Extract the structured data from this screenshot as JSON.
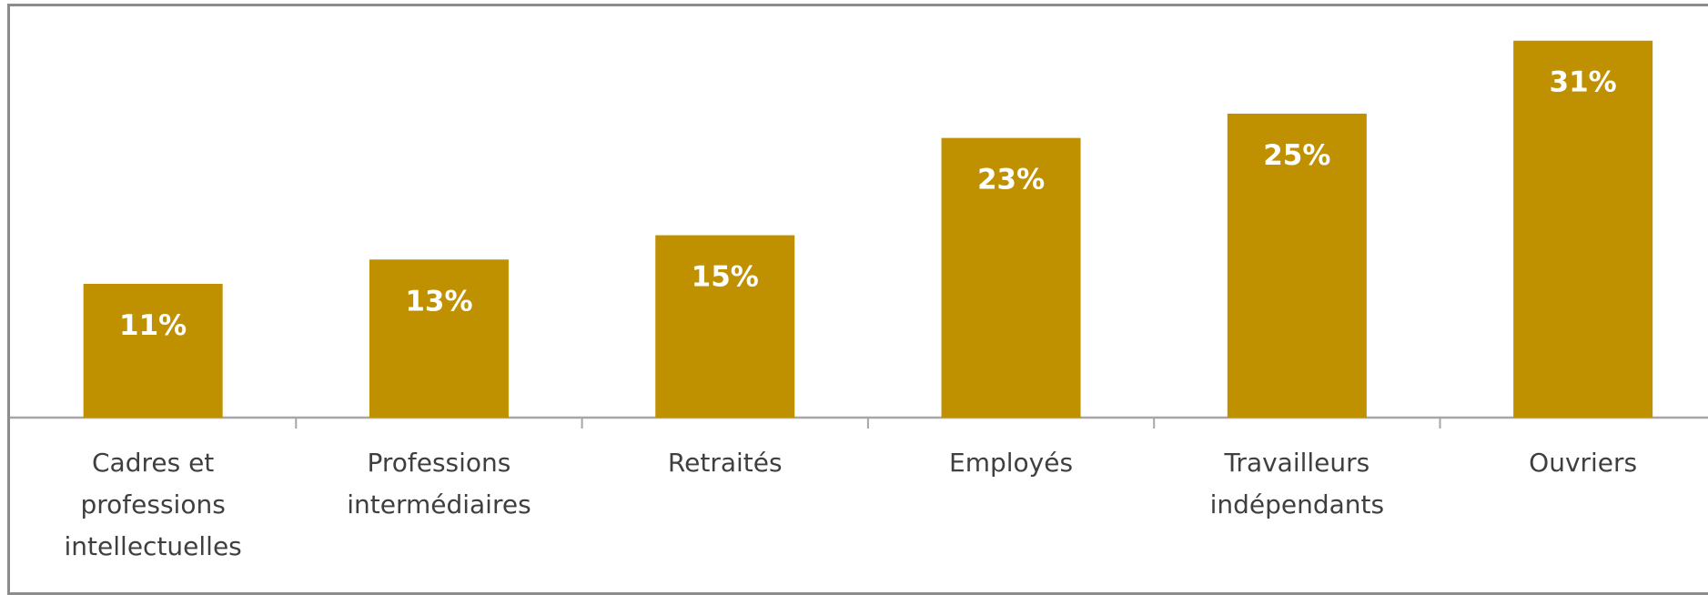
{
  "chart_data": {
    "type": "bar",
    "categories": [
      [
        "Cadres et",
        "professions",
        "intellectuelles"
      ],
      [
        "Professions",
        "intermédiaires"
      ],
      [
        "Retraités"
      ],
      [
        "Employés"
      ],
      [
        "Travailleurs",
        "indépendants"
      ],
      [
        "Ouvriers"
      ]
    ],
    "values": [
      11,
      13,
      15,
      23,
      25,
      31
    ],
    "data_labels": [
      "11%",
      "13%",
      "15%",
      "23%",
      "25%",
      "31%"
    ],
    "ylim": [
      0,
      33
    ],
    "grid": false,
    "legend": "none",
    "title": "",
    "xlabel": "",
    "ylabel": ""
  },
  "colors": {
    "bar": "#bf9000",
    "axis": "#a6a6a6",
    "border": "#8c8c8c",
    "label": "#ffffff",
    "category_text": "#3f3f3f"
  }
}
